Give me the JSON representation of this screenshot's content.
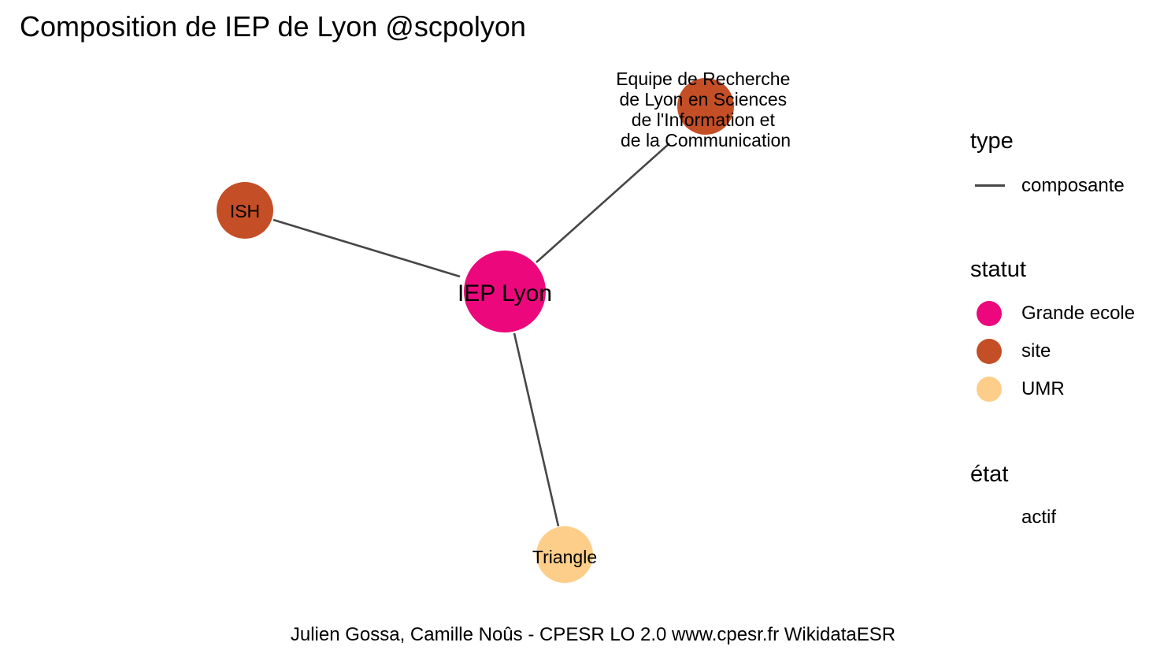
{
  "title": "Composition de IEP de Lyon @scpolyon",
  "caption": "Julien Gossa, Camille Noûs - CPESR LO 2.0 www.cpesr.fr WikidataESR",
  "graph": {
    "edge_color": "#474747",
    "nodes": [
      {
        "id": "iep",
        "label": [
          "IEP Lyon"
        ],
        "statut": "Grande ecole",
        "color": "#EC087C"
      },
      {
        "id": "elico",
        "label": [
          "Equipe de Recherche",
          "de Lyon en Sciences",
          "de l'Information et",
          "de la Communication"
        ],
        "statut": "site",
        "color": "#C44E26"
      },
      {
        "id": "ish",
        "label": [
          "ISH"
        ],
        "statut": "site",
        "color": "#C44E26"
      },
      {
        "id": "triangle",
        "label": [
          "Triangle"
        ],
        "statut": "UMR",
        "color": "#FDCE89"
      }
    ],
    "edges": [
      {
        "from": "iep",
        "to": "elico",
        "type": "composante"
      },
      {
        "from": "iep",
        "to": "ish",
        "type": "composante"
      },
      {
        "from": "iep",
        "to": "triangle",
        "type": "composante"
      }
    ]
  },
  "legend": {
    "type": {
      "heading": "type",
      "items": [
        {
          "label": "composante",
          "color": "#474747"
        }
      ]
    },
    "statut": {
      "heading": "statut",
      "items": [
        {
          "label": "Grande ecole",
          "color": "#EC087C"
        },
        {
          "label": "site",
          "color": "#C44E26"
        },
        {
          "label": "UMR",
          "color": "#FDCE89"
        }
      ]
    },
    "etat": {
      "heading": "état",
      "items": [
        {
          "label": "actif"
        }
      ]
    }
  }
}
